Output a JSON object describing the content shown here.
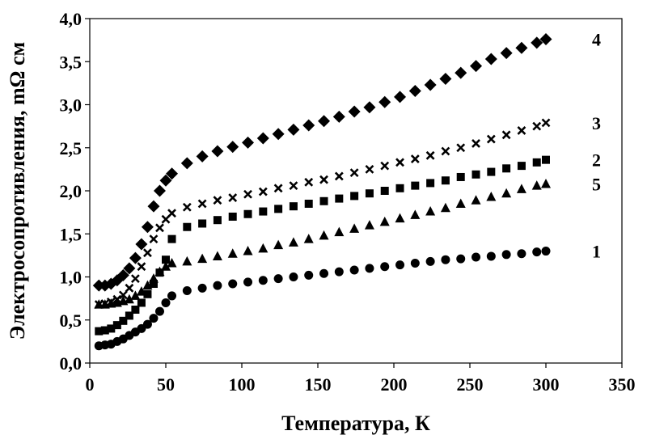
{
  "chart_data": {
    "type": "scatter",
    "xlabel": "Температура,  К",
    "ylabel": "Электросопротивления,  mΩ см",
    "xlim": [
      0,
      350
    ],
    "ylim": [
      0,
      4.0
    ],
    "x_ticks": [
      "0",
      "50",
      "100",
      "150",
      "200",
      "250",
      "300",
      "350"
    ],
    "y_ticks": [
      "0,0",
      "0,5",
      "1,0",
      "1,5",
      "2,0",
      "2,5",
      "3,0",
      "3,5",
      "4,0"
    ],
    "grid": false,
    "series": [
      {
        "name": "1",
        "marker": "circle",
        "points": [
          [
            6,
            0.2
          ],
          [
            10,
            0.21
          ],
          [
            14,
            0.22
          ],
          [
            18,
            0.25
          ],
          [
            22,
            0.28
          ],
          [
            26,
            0.32
          ],
          [
            30,
            0.36
          ],
          [
            34,
            0.4
          ],
          [
            38,
            0.45
          ],
          [
            42,
            0.52
          ],
          [
            46,
            0.6
          ],
          [
            50,
            0.7
          ],
          [
            54,
            0.78
          ],
          [
            64,
            0.84
          ],
          [
            74,
            0.87
          ],
          [
            84,
            0.9
          ],
          [
            94,
            0.92
          ],
          [
            104,
            0.94
          ],
          [
            114,
            0.96
          ],
          [
            124,
            0.98
          ],
          [
            134,
            1.0
          ],
          [
            144,
            1.02
          ],
          [
            154,
            1.04
          ],
          [
            164,
            1.06
          ],
          [
            174,
            1.08
          ],
          [
            184,
            1.1
          ],
          [
            194,
            1.12
          ],
          [
            204,
            1.14
          ],
          [
            214,
            1.16
          ],
          [
            224,
            1.18
          ],
          [
            234,
            1.2
          ],
          [
            244,
            1.21
          ],
          [
            254,
            1.23
          ],
          [
            264,
            1.24
          ],
          [
            274,
            1.26
          ],
          [
            284,
            1.27
          ],
          [
            294,
            1.29
          ],
          [
            300,
            1.3
          ]
        ]
      },
      {
        "name": "2",
        "marker": "square",
        "points": [
          [
            6,
            0.37
          ],
          [
            10,
            0.38
          ],
          [
            14,
            0.4
          ],
          [
            18,
            0.44
          ],
          [
            22,
            0.49
          ],
          [
            26,
            0.55
          ],
          [
            30,
            0.62
          ],
          [
            34,
            0.7
          ],
          [
            38,
            0.8
          ],
          [
            42,
            0.92
          ],
          [
            46,
            1.05
          ],
          [
            50,
            1.2
          ],
          [
            54,
            1.44
          ],
          [
            64,
            1.58
          ],
          [
            74,
            1.62
          ],
          [
            84,
            1.66
          ],
          [
            94,
            1.7
          ],
          [
            104,
            1.73
          ],
          [
            114,
            1.76
          ],
          [
            124,
            1.79
          ],
          [
            134,
            1.82
          ],
          [
            144,
            1.85
          ],
          [
            154,
            1.88
          ],
          [
            164,
            1.91
          ],
          [
            174,
            1.94
          ],
          [
            184,
            1.97
          ],
          [
            194,
            2.0
          ],
          [
            204,
            2.03
          ],
          [
            214,
            2.06
          ],
          [
            224,
            2.09
          ],
          [
            234,
            2.12
          ],
          [
            244,
            2.16
          ],
          [
            254,
            2.19
          ],
          [
            264,
            2.22
          ],
          [
            274,
            2.26
          ],
          [
            284,
            2.29
          ],
          [
            294,
            2.33
          ],
          [
            300,
            2.36
          ]
        ]
      },
      {
        "name": "3",
        "marker": "x",
        "points": [
          [
            6,
            0.68
          ],
          [
            10,
            0.69
          ],
          [
            14,
            0.71
          ],
          [
            18,
            0.74
          ],
          [
            22,
            0.79
          ],
          [
            26,
            0.87
          ],
          [
            30,
            0.98
          ],
          [
            34,
            1.12
          ],
          [
            38,
            1.28
          ],
          [
            42,
            1.44
          ],
          [
            46,
            1.57
          ],
          [
            50,
            1.67
          ],
          [
            54,
            1.74
          ],
          [
            64,
            1.81
          ],
          [
            74,
            1.85
          ],
          [
            84,
            1.89
          ],
          [
            94,
            1.92
          ],
          [
            104,
            1.96
          ],
          [
            114,
            1.99
          ],
          [
            124,
            2.03
          ],
          [
            134,
            2.06
          ],
          [
            144,
            2.1
          ],
          [
            154,
            2.13
          ],
          [
            164,
            2.17
          ],
          [
            174,
            2.21
          ],
          [
            184,
            2.25
          ],
          [
            194,
            2.29
          ],
          [
            204,
            2.33
          ],
          [
            214,
            2.37
          ],
          [
            224,
            2.41
          ],
          [
            234,
            2.46
          ],
          [
            244,
            2.5
          ],
          [
            254,
            2.55
          ],
          [
            264,
            2.6
          ],
          [
            274,
            2.65
          ],
          [
            284,
            2.7
          ],
          [
            294,
            2.75
          ],
          [
            300,
            2.79
          ]
        ]
      },
      {
        "name": "4",
        "marker": "diamond",
        "points": [
          [
            6,
            0.9
          ],
          [
            10,
            0.9
          ],
          [
            14,
            0.92
          ],
          [
            18,
            0.96
          ],
          [
            22,
            1.02
          ],
          [
            26,
            1.1
          ],
          [
            30,
            1.22
          ],
          [
            34,
            1.38
          ],
          [
            38,
            1.58
          ],
          [
            42,
            1.82
          ],
          [
            46,
            2.0
          ],
          [
            50,
            2.12
          ],
          [
            54,
            2.2
          ],
          [
            64,
            2.32
          ],
          [
            74,
            2.4
          ],
          [
            84,
            2.46
          ],
          [
            94,
            2.51
          ],
          [
            104,
            2.56
          ],
          [
            114,
            2.61
          ],
          [
            124,
            2.66
          ],
          [
            134,
            2.71
          ],
          [
            144,
            2.76
          ],
          [
            154,
            2.81
          ],
          [
            164,
            2.86
          ],
          [
            174,
            2.92
          ],
          [
            184,
            2.97
          ],
          [
            194,
            3.03
          ],
          [
            204,
            3.09
          ],
          [
            214,
            3.16
          ],
          [
            224,
            3.23
          ],
          [
            234,
            3.3
          ],
          [
            244,
            3.37
          ],
          [
            254,
            3.45
          ],
          [
            264,
            3.53
          ],
          [
            274,
            3.6
          ],
          [
            284,
            3.66
          ],
          [
            294,
            3.72
          ],
          [
            300,
            3.76
          ]
        ]
      },
      {
        "name": "5",
        "marker": "triangle",
        "points": [
          [
            6,
            0.68
          ],
          [
            10,
            0.68
          ],
          [
            14,
            0.69
          ],
          [
            18,
            0.7
          ],
          [
            22,
            0.72
          ],
          [
            26,
            0.74
          ],
          [
            30,
            0.78
          ],
          [
            34,
            0.83
          ],
          [
            38,
            0.9
          ],
          [
            42,
            0.98
          ],
          [
            46,
            1.06
          ],
          [
            50,
            1.12
          ],
          [
            54,
            1.16
          ],
          [
            64,
            1.18
          ],
          [
            74,
            1.21
          ],
          [
            84,
            1.24
          ],
          [
            94,
            1.27
          ],
          [
            104,
            1.3
          ],
          [
            114,
            1.33
          ],
          [
            124,
            1.37
          ],
          [
            134,
            1.4
          ],
          [
            144,
            1.44
          ],
          [
            154,
            1.48
          ],
          [
            164,
            1.52
          ],
          [
            174,
            1.56
          ],
          [
            184,
            1.6
          ],
          [
            194,
            1.64
          ],
          [
            204,
            1.68
          ],
          [
            214,
            1.72
          ],
          [
            224,
            1.76
          ],
          [
            234,
            1.8
          ],
          [
            244,
            1.85
          ],
          [
            254,
            1.89
          ],
          [
            264,
            1.93
          ],
          [
            274,
            1.97
          ],
          [
            284,
            2.02
          ],
          [
            294,
            2.06
          ],
          [
            300,
            2.08
          ]
        ]
      }
    ]
  }
}
